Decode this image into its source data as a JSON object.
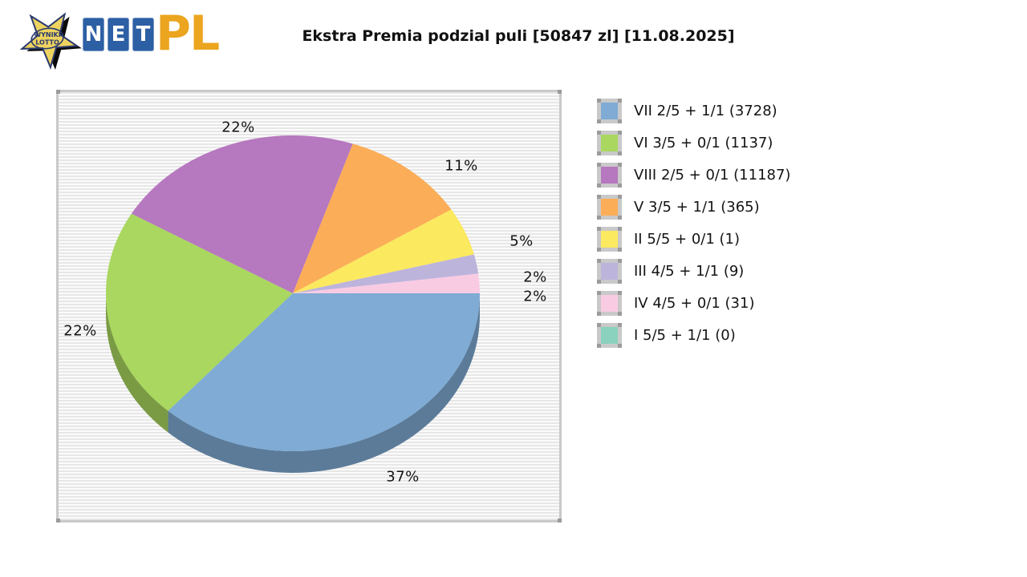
{
  "logo": {
    "star_text_line1": "WYNIKI",
    "star_text_line2": "LOTTO",
    "net_letters": [
      "N",
      "E",
      "T"
    ],
    "suffix_text": "PL",
    "colors": {
      "star_fill": "#edd35f",
      "star_stroke": "#2b3a6e",
      "tile_blue": "#2d5fa4",
      "gold": "#eba51e"
    }
  },
  "title": "Ekstra Premia podzial puli [50847 zl] [11.08.2025]",
  "chart_data": {
    "type": "pie",
    "title": "Ekstra Premia podzial puli [50847 zl] [11.08.2025]",
    "pool_total": "50847 zl",
    "date": "11.08.2025",
    "legend_position": "right",
    "effect_3d": true,
    "background_stripes": true,
    "start_angle_deg": 0,
    "direction": "clockwise",
    "series": [
      {
        "legend_label": "VII 2/5 + 1/1 (3728)",
        "tier": "VII 2/5 + 1/1",
        "winners": 3728,
        "percent": 37,
        "percent_label": "37%",
        "color": "#7fabd5"
      },
      {
        "legend_label": "VI 3/5 + 0/1 (1137)",
        "tier": "VI 3/5 + 0/1",
        "winners": 1137,
        "percent": 22,
        "percent_label": "22%",
        "color": "#a9d75f"
      },
      {
        "legend_label": "VIII 2/5 + 0/1 (11187)",
        "tier": "VIII 2/5 + 0/1",
        "winners": 11187,
        "percent": 22,
        "percent_label": "22%",
        "color": "#b678be"
      },
      {
        "legend_label": "V 3/5 + 1/1 (365)",
        "tier": "V 3/5 + 1/1",
        "winners": 365,
        "percent": 11,
        "percent_label": "11%",
        "color": "#fbad57"
      },
      {
        "legend_label": "II 5/5 + 0/1 (1)",
        "tier": "II 5/5 + 0/1",
        "winners": 1,
        "percent": 5,
        "percent_label": "5%",
        "color": "#fbe95f"
      },
      {
        "legend_label": "III 4/5 + 1/1 (9)",
        "tier": "III 4/5 + 1/1",
        "winners": 9,
        "percent": 2,
        "percent_label": "2%",
        "color": "#bdb4dc"
      },
      {
        "legend_label": "IV 4/5 + 0/1 (31)",
        "tier": "IV 4/5 + 0/1",
        "winners": 31,
        "percent": 2,
        "percent_label": "2%",
        "color": "#f9cbe3"
      },
      {
        "legend_label": "I 5/5 + 1/1 (0)",
        "tier": "I 5/5 + 1/1",
        "winners": 0,
        "percent": 0,
        "percent_label": "",
        "color": "#8ad2bd"
      }
    ]
  }
}
